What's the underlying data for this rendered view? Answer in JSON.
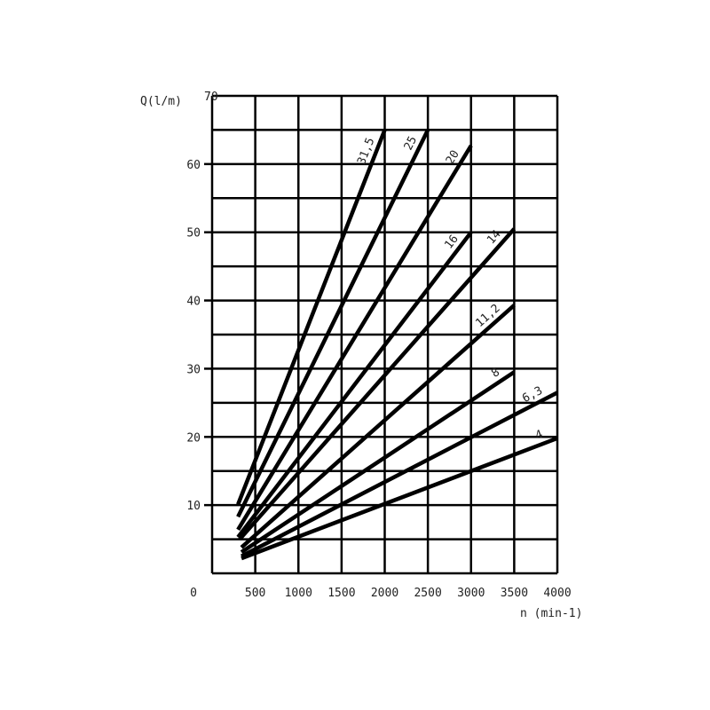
{
  "chart_data": {
    "type": "line",
    "ylabel": "Q(l/m)",
    "xlabel": "n (min-1)",
    "xlim": [
      0,
      4000
    ],
    "ylim": [
      0,
      70
    ],
    "x_ticks": [
      "0",
      "500",
      "1000",
      "1500",
      "2000",
      "2500",
      "3000",
      "3500",
      "4000"
    ],
    "y_ticks": [
      "10",
      "20",
      "30",
      "40",
      "50",
      "60",
      "70"
    ],
    "grid": true,
    "line_color": "#000000",
    "series": [
      {
        "name": "31,5",
        "x": [
          300,
          2000
        ],
        "y": [
          10.1,
          65
        ]
      },
      {
        "name": "25",
        "x": [
          300,
          2500
        ],
        "y": [
          8.3,
          65
        ]
      },
      {
        "name": "20",
        "x": [
          300,
          3000
        ],
        "y": [
          6.4,
          62.7
        ]
      },
      {
        "name": "16",
        "x": [
          300,
          3000
        ],
        "y": [
          5.3,
          50
        ]
      },
      {
        "name": "14",
        "x": [
          320,
          3500
        ],
        "y": [
          5.0,
          50.5
        ]
      },
      {
        "name": "11,2",
        "x": [
          340,
          3500
        ],
        "y": [
          3.8,
          39.3
        ]
      },
      {
        "name": "8",
        "x": [
          340,
          3500
        ],
        "y": [
          3.1,
          29.5
        ]
      },
      {
        "name": "6,3",
        "x": [
          340,
          4000
        ],
        "y": [
          2.5,
          26.5
        ]
      },
      {
        "name": "4",
        "x": [
          340,
          4000
        ],
        "y": [
          2.2,
          19.8
        ]
      }
    ]
  }
}
